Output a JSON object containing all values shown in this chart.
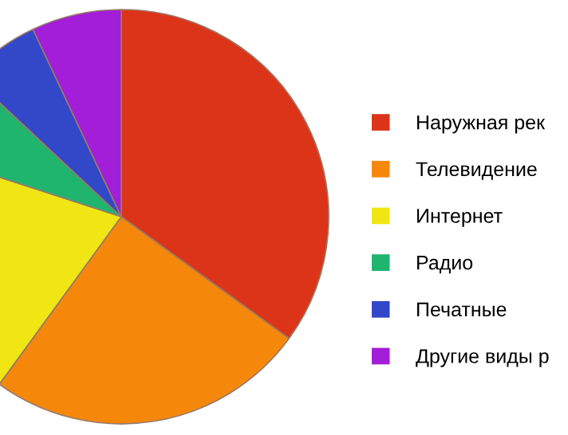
{
  "chart_data": {
    "type": "pie",
    "categories": [
      "Наружная рек",
      "Телевидение",
      "Интернет",
      "Радио",
      "Печатные",
      "Другие виды р"
    ],
    "values": [
      35,
      25,
      20,
      7,
      6,
      7
    ],
    "colors": [
      "#dc3418",
      "#f5880a",
      "#f0e614",
      "#1fb56e",
      "#3348c8",
      "#a21ed8"
    ],
    "legend": "right"
  }
}
